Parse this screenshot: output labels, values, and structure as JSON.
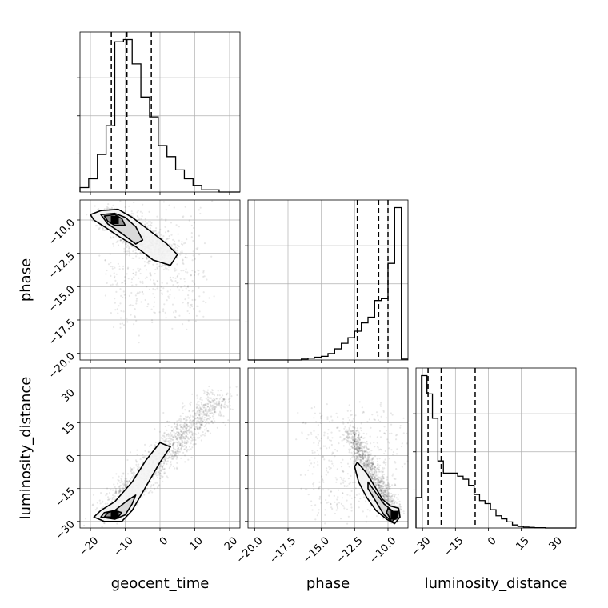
{
  "chart_data": {
    "type": "corner",
    "parameters": [
      "geocent_time",
      "phase",
      "luminosity_distance"
    ],
    "grid": true,
    "colors": {
      "line": "#000000",
      "grid": "#b0b0b0",
      "points": "#000000"
    },
    "ranges": {
      "geocent_time": [
        -23,
        23
      ],
      "phase": [
        -20.5,
        -8.5
      ],
      "luminosity_distance": [
        -33,
        40
      ]
    },
    "ticks": {
      "geocent_time": {
        "values": [
          -20,
          -10,
          0,
          10,
          20
        ],
        "labels": [
          "−20",
          "−10",
          "0",
          "10",
          "20"
        ]
      },
      "phase_y": {
        "values": [
          -10,
          -12.5,
          -15,
          -17.5,
          -20
        ],
        "labels": [
          "−10.0",
          "−12.5",
          "−15.0",
          "−17.5",
          "−20.0"
        ]
      },
      "phase_x": {
        "values": [
          -20,
          -17.5,
          -15,
          -12.5,
          -10
        ],
        "labels": [
          "−20.0",
          "−17.5",
          "−15.0",
          "−12.5",
          "−10.0"
        ]
      },
      "luminosity_distance_y": {
        "values": [
          30,
          15,
          0,
          -15,
          -30
        ],
        "labels": [
          "30",
          "15",
          "0",
          "−15",
          "−30"
        ]
      },
      "luminosity_distance_x": {
        "values": [
          -30,
          -15,
          0,
          15,
          30
        ],
        "labels": [
          "−30",
          "−15",
          "0",
          "15",
          "30"
        ]
      }
    },
    "histograms": {
      "geocent_time": {
        "edges": [
          -23,
          -20.5,
          -18,
          -15.5,
          -13,
          -10.5,
          -8,
          -5.5,
          -3,
          -0.5,
          2,
          4.5,
          7,
          9.5,
          12,
          14.5,
          17,
          23
        ],
        "counts": [
          2,
          6,
          17,
          30,
          68,
          69,
          58,
          43,
          34,
          21,
          16,
          10,
          6,
          3,
          1,
          1,
          0
        ],
        "quantiles": [
          -14,
          -9.5,
          -2.5
        ]
      },
      "phase": {
        "edges": [
          -20.5,
          -16.5,
          -16,
          -15.5,
          -15,
          -14.5,
          -14,
          -13.5,
          -13,
          -12.5,
          -12,
          -11.5,
          -11,
          -10.5,
          -10,
          -9.5,
          -9,
          -8.5
        ],
        "counts": [
          0,
          1,
          2,
          3,
          4,
          7,
          12,
          18,
          24,
          31,
          40,
          46,
          64,
          66,
          104,
          164,
          1
        ],
        "quantiles": [
          -12.3,
          -10.7,
          -10.0
        ]
      },
      "luminosity_distance": {
        "edges": [
          -33,
          -30.5,
          -28,
          -25.5,
          -23,
          -20.5,
          -16.5,
          -14,
          -11.5,
          -9,
          -6.5,
          -4,
          -1.5,
          1,
          3.5,
          6,
          8.5,
          11,
          13.5,
          16,
          18.5,
          21,
          26,
          40
        ],
        "counts": [
          10,
          50,
          44,
          36,
          22,
          18,
          18,
          17,
          16,
          14,
          11,
          9,
          8,
          6,
          4,
          3,
          2,
          1,
          0.5,
          0.3,
          0.2,
          0.1,
          0
        ],
        "quantiles": [
          -27.5,
          -21.5,
          -6
        ]
      }
    },
    "joint": {
      "phase_vs_geocent_time": {
        "density_center": [
          -13,
          -10
        ],
        "contours": [
          [
            [
              -20,
              -9.6
            ],
            [
              -17,
              -9.3
            ],
            [
              -12,
              -9.2
            ],
            [
              -8,
              -9.8
            ],
            [
              -3,
              -10.8
            ],
            [
              2,
              -11.8
            ],
            [
              5,
              -12.6
            ],
            [
              3,
              -13.4
            ],
            [
              -2,
              -13
            ],
            [
              -7,
              -12
            ],
            [
              -12,
              -11.2
            ],
            [
              -16,
              -10.5
            ],
            [
              -19,
              -10
            ]
          ],
          [
            [
              -17,
              -9.6
            ],
            [
              -13,
              -9.5
            ],
            [
              -10,
              -9.8
            ],
            [
              -7,
              -10.5
            ],
            [
              -5,
              -11.5
            ],
            [
              -7,
              -11.8
            ],
            [
              -11,
              -11
            ],
            [
              -15,
              -10.3
            ]
          ],
          [
            [
              -16,
              -9.7
            ],
            [
              -13,
              -9.6
            ],
            [
              -11,
              -9.9
            ],
            [
              -10,
              -10.4
            ],
            [
              -13,
              -10.4
            ],
            [
              -15,
              -10.1
            ]
          ]
        ]
      },
      "luminosity_distance_vs_geocent_time": {
        "density_center": [
          -13,
          -27
        ],
        "contours": [
          [
            [
              -19,
              -28
            ],
            [
              -16,
              -30
            ],
            [
              -11,
              -30
            ],
            [
              -8,
              -25
            ],
            [
              -4,
              -14
            ],
            [
              0,
              -3
            ],
            [
              3,
              4
            ],
            [
              0,
              6
            ],
            [
              -4,
              -2
            ],
            [
              -8,
              -12
            ],
            [
              -13,
              -21
            ],
            [
              -17,
              -25
            ]
          ],
          [
            [
              -17,
              -28
            ],
            [
              -13,
              -29
            ],
            [
              -10,
              -27
            ],
            [
              -8,
              -22
            ],
            [
              -7,
              -18
            ],
            [
              -9,
              -20
            ],
            [
              -13,
              -25
            ],
            [
              -16,
              -26
            ]
          ],
          [
            [
              -16,
              -28
            ],
            [
              -12,
              -28
            ],
            [
              -11,
              -26
            ],
            [
              -13,
              -25
            ],
            [
              -15,
              -26
            ]
          ]
        ]
      },
      "luminosity_distance_vs_phase": {
        "density_center": [
          -9.5,
          -27
        ],
        "contours": [
          [
            [
              -12.3,
              -3
            ],
            [
              -11.6,
              -8
            ],
            [
              -10.9,
              -15
            ],
            [
              -10.4,
              -20
            ],
            [
              -9.8,
              -23
            ],
            [
              -9.2,
              -24
            ],
            [
              -9.1,
              -28
            ],
            [
              -9.5,
              -31
            ],
            [
              -10.1,
              -29
            ],
            [
              -10.9,
              -25
            ],
            [
              -11.6,
              -19
            ],
            [
              -12.2,
              -12
            ],
            [
              -12.5,
              -5
            ]
          ],
          [
            [
              -11.5,
              -12
            ],
            [
              -10.9,
              -17
            ],
            [
              -10.3,
              -22
            ],
            [
              -9.7,
              -25
            ],
            [
              -9.3,
              -28
            ],
            [
              -9.7,
              -30
            ],
            [
              -10.3,
              -27
            ],
            [
              -10.9,
              -21
            ],
            [
              -11.5,
              -15
            ]
          ],
          [
            [
              -10.0,
              -24
            ],
            [
              -9.5,
              -26
            ],
            [
              -9.4,
              -29
            ],
            [
              -9.8,
              -29
            ],
            [
              -10.1,
              -26
            ]
          ]
        ]
      }
    }
  }
}
